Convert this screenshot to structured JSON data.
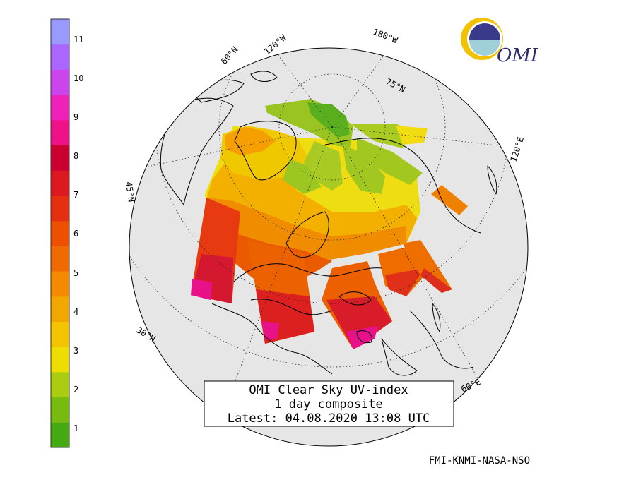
{
  "title": {
    "line1": "OMI Clear Sky UV-index",
    "line2": "1 day composite",
    "line3": "Latest: 04.08.2020 13:08 UTC"
  },
  "credits": "FMI-KNMI-NASA-NSO",
  "logo_text": "OMI",
  "legend": {
    "labels": [
      "1",
      "2",
      "3",
      "4",
      "5",
      "6",
      "7",
      "8",
      "9",
      "10",
      "11"
    ],
    "colors": [
      "#44aa11",
      "#77bb11",
      "#aacc11",
      "#eedd00",
      "#f5c400",
      "#f2a600",
      "#f38a00",
      "#ef6a00",
      "#ee5000",
      "#e42f10",
      "#dd1820",
      "#cc0030",
      "#ee1188",
      "#ee22bb",
      "#cc44ee",
      "#aa66ff",
      "#9999ff"
    ]
  },
  "map_labels": {
    "lat_60": "60°N",
    "lat_45": "45°N",
    "lat_30": "30°N",
    "lat_75": "75°N",
    "lon_120w": "120°W",
    "lon_180w": "180°W",
    "lon_120e": "120°E",
    "lon_60e": "60°E"
  },
  "colors": {
    "globe_fill": "#e6e6e6",
    "coast": "#000000",
    "graticule": "#222222"
  }
}
